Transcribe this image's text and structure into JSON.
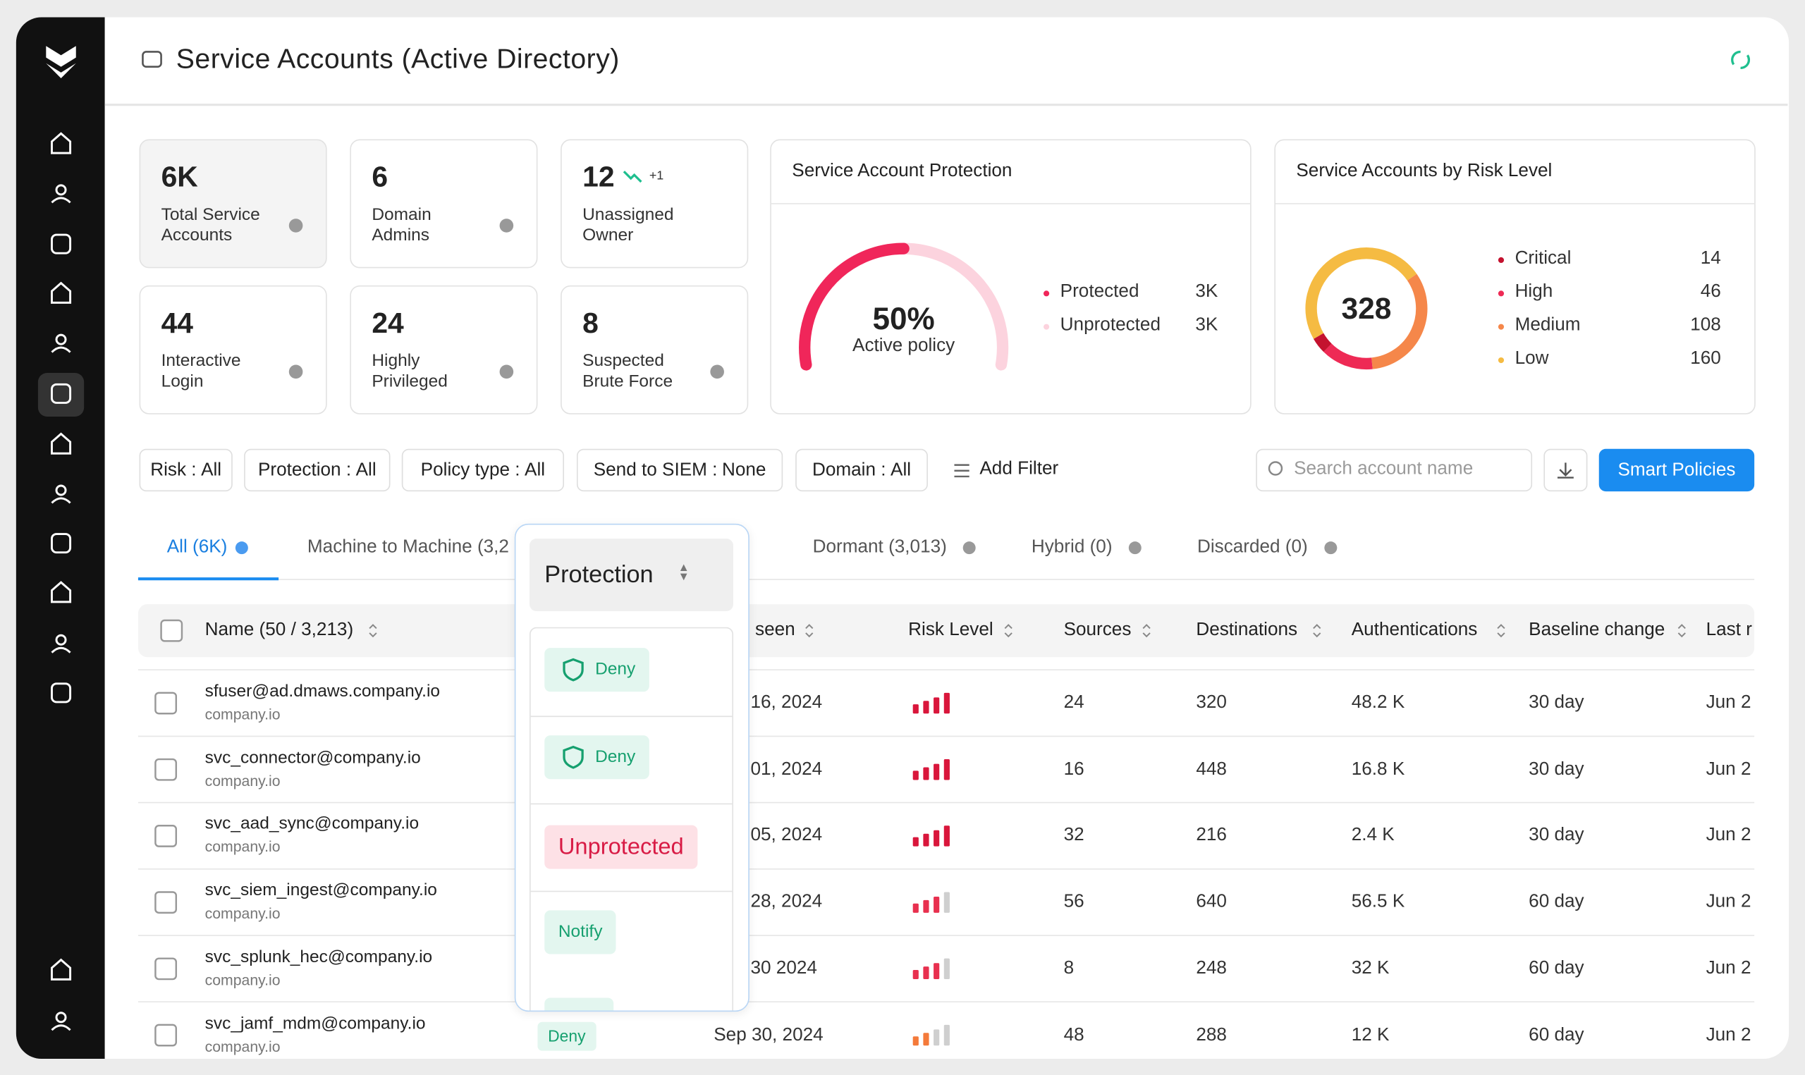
{
  "header": {
    "title": "Service Accounts (Active Directory)"
  },
  "stats": [
    {
      "value": "6K",
      "label": [
        "Total Service",
        "Accounts"
      ]
    },
    {
      "value": "6",
      "label": [
        "Domain",
        "Admins"
      ]
    },
    {
      "value": "12",
      "label": [
        "Unassigned",
        "Owner"
      ],
      "trend": "+1"
    },
    {
      "value": "44",
      "label": [
        "Interactive",
        "Login"
      ]
    },
    {
      "value": "24",
      "label": [
        "Highly",
        "Privileged"
      ]
    },
    {
      "value": "8",
      "label": [
        "Suspected",
        "Brute Force"
      ]
    }
  ],
  "protection": {
    "title": "Service Account Protection",
    "value": 50,
    "value_label": "50%",
    "caption": "Active policy",
    "legend": [
      {
        "name": "Protected",
        "value": "3K",
        "color": "#f0265a"
      },
      {
        "name": "Unprotected",
        "value": "3K",
        "color": "#fcd3de"
      }
    ]
  },
  "risk": {
    "title": "Service Accounts by Risk Level",
    "total": "328",
    "levels": [
      {
        "name": "Critical",
        "value": 14,
        "color": "#c4122f"
      },
      {
        "name": "High",
        "value": 46,
        "color": "#ee2a55"
      },
      {
        "name": "Medium",
        "value": 108,
        "color": "#f5874a"
      },
      {
        "name": "Low",
        "value": 160,
        "color": "#f5bb42"
      }
    ]
  },
  "filters": [
    {
      "label": "Risk :",
      "value": "All"
    },
    {
      "label": "Protection :",
      "value": "All"
    },
    {
      "label": "Policy type :",
      "value": "All"
    },
    {
      "label": "Send to SIEM :",
      "value": "None"
    },
    {
      "label": "Domain :",
      "value": "All"
    }
  ],
  "add_filter": "Add Filter",
  "search_placeholder": "Search account name",
  "smart_policies": "Smart Policies",
  "tabs": [
    "All (6K)",
    "Machine to Machine (3,2",
    "Dormant (3,013)",
    "Hybrid (0)",
    "Discarded (0)"
  ],
  "table": {
    "columns": [
      "Name (50 / 3,213)",
      "seen",
      "Risk Level",
      "Sources",
      "Destinations",
      "Authentications",
      "Baseline change",
      "Last r"
    ],
    "rows": [
      {
        "name": "sfuser@ad.dmaws.company.io",
        "domain": "company.io",
        "last_seen": "16, 2024",
        "risk_bars": 4,
        "risk_color": "#d9163b",
        "sources": 24,
        "destinations": 320,
        "authentications": "48.2 K",
        "baseline": "30 day",
        "last": "Jun 2"
      },
      {
        "name": "svc_connector@company.io",
        "domain": "company.io",
        "last_seen": "01, 2024",
        "risk_bars": 4,
        "risk_color": "#d9163b",
        "sources": 16,
        "destinations": 448,
        "authentications": "16.8 K",
        "baseline": "30 day",
        "last": "Jun 2"
      },
      {
        "name": "svc_aad_sync@company.io",
        "domain": "company.io",
        "last_seen": "05, 2024",
        "risk_bars": 4,
        "risk_color": "#d9163b",
        "sources": 32,
        "destinations": 216,
        "authentications": "2.4 K",
        "baseline": "30 day",
        "last": "Jun 2"
      },
      {
        "name": "svc_siem_ingest@company.io",
        "domain": "company.io",
        "last_seen": "28, 2024",
        "risk_bars": 3,
        "risk_color": "#e8304f",
        "sources": 56,
        "destinations": 640,
        "authentications": "56.5 K",
        "baseline": "60 day",
        "last": "Jun 2"
      },
      {
        "name": "svc_splunk_hec@company.io",
        "domain": "company.io",
        "last_seen": "30 2024",
        "risk_bars": 3,
        "risk_color": "#e8304f",
        "sources": 8,
        "destinations": 248,
        "authentications": "32 K",
        "baseline": "60 day",
        "last": "Jun 2"
      },
      {
        "name": "svc_jamf_mdm@company.io",
        "domain": "company.io",
        "protection": "Deny",
        "last_seen": "Sep 30, 2024",
        "risk_bars": 2,
        "risk_color": "#f47a3a",
        "sources": 48,
        "destinations": 288,
        "authentications": "12 K",
        "baseline": "60 day",
        "last": "Jun 2"
      }
    ]
  },
  "popup": {
    "title": "Protection",
    "items": [
      "Deny",
      "Deny",
      "Unprotected",
      "Notify"
    ]
  }
}
